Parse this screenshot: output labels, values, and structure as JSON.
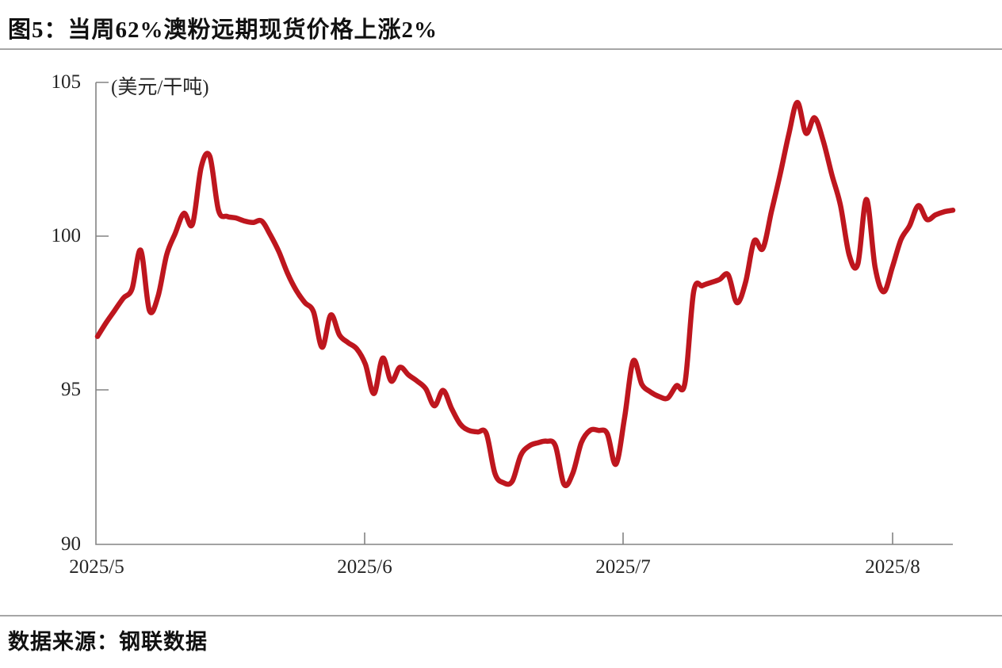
{
  "page": {
    "title": "图5：当周62%澳粉远期现货价格上涨2%",
    "source": "数据来源：钢联数据"
  },
  "chart_data": {
    "type": "line",
    "title": "当周62%澳粉远期现货价格上涨2%",
    "series_name": "62%澳粉远期现货价格",
    "unit_label": "(美元/干吨)",
    "interval": "daily",
    "start_date": "2025-05-01",
    "end_date": "2025-08-08",
    "ylim": [
      90,
      105
    ],
    "y_ticks": [
      "105",
      "100",
      "95",
      "90"
    ],
    "x_ticks": [
      "2025/5",
      "2025/6",
      "2025/7",
      "2025/8"
    ],
    "grid": false,
    "legend_position": "none",
    "line_color": "#be161e",
    "axis_color": "#848484",
    "label_color": "#262626",
    "values": [
      96.75,
      97.2,
      97.6,
      98.0,
      98.3,
      99.55,
      97.6,
      98.05,
      99.4,
      100.1,
      100.75,
      100.4,
      102.25,
      102.6,
      100.85,
      100.65,
      100.6,
      100.5,
      100.45,
      100.5,
      100.05,
      99.5,
      98.8,
      98.25,
      97.85,
      97.55,
      96.4,
      97.45,
      96.8,
      96.55,
      96.35,
      95.85,
      94.9,
      96.05,
      95.3,
      95.75,
      95.5,
      95.3,
      95.05,
      94.5,
      95.0,
      94.4,
      93.9,
      93.7,
      93.65,
      93.6,
      92.3,
      92.0,
      92.05,
      92.9,
      93.2,
      93.3,
      93.35,
      93.2,
      91.95,
      92.3,
      93.3,
      93.7,
      93.7,
      93.6,
      92.6,
      94.1,
      95.95,
      95.2,
      94.95,
      94.8,
      94.75,
      95.15,
      95.25,
      98.2,
      98.4,
      98.5,
      98.6,
      98.75,
      97.85,
      98.5,
      99.85,
      99.6,
      100.8,
      102.0,
      103.3,
      104.35,
      103.35,
      103.85,
      103.1,
      102.0,
      101.0,
      99.4,
      99.1,
      101.2,
      99.0,
      98.2,
      99.0,
      99.9,
      100.35,
      101.0,
      100.55,
      100.7,
      100.8,
      100.85
    ]
  }
}
